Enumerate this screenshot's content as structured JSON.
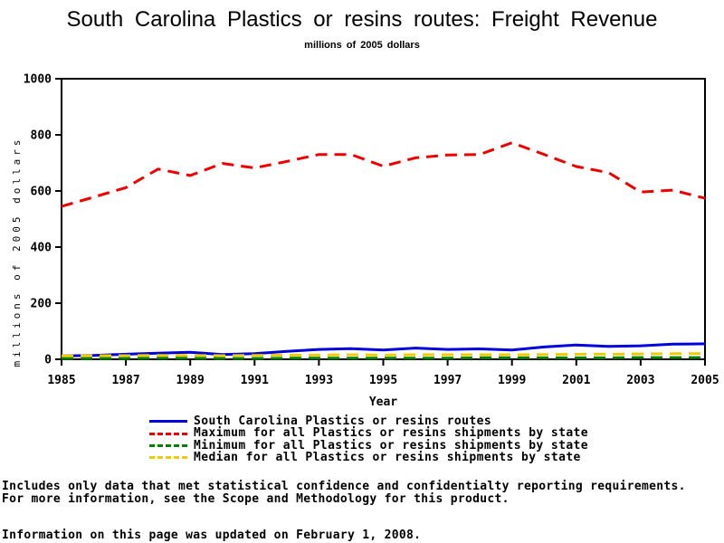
{
  "title": "South Carolina Plastics or resins routes: Freight Revenue",
  "subtitle": "millions of 2005 dollars",
  "chart_data": {
    "type": "line",
    "title": "South Carolina Plastics or resins routes: Freight Revenue",
    "subtitle": "millions of 2005 dollars",
    "xlabel": "Year",
    "ylabel": "millions of 2005 dollars",
    "ylim": [
      0,
      1000
    ],
    "yticks": [
      0,
      200,
      400,
      600,
      800,
      1000
    ],
    "xticks": [
      1985,
      1987,
      1989,
      1991,
      1993,
      1995,
      1997,
      1999,
      2001,
      2003,
      2005
    ],
    "x": [
      1985,
      1986,
      1987,
      1988,
      1989,
      1990,
      1991,
      1992,
      1993,
      1994,
      1995,
      1996,
      1997,
      1998,
      1999,
      2000,
      2001,
      2002,
      2003,
      2004,
      2005
    ],
    "legend_position": "bottom",
    "grid": false,
    "series": [
      {
        "name": "South Carolina Plastics or resins routes",
        "color": "#0000dd",
        "dash": "solid",
        "values": [
          12,
          14,
          18,
          22,
          25,
          17,
          20,
          28,
          35,
          38,
          33,
          40,
          35,
          37,
          33,
          44,
          51,
          46,
          48,
          54,
          55
        ]
      },
      {
        "name": "Maximum for all Plastics or resins shipments by state",
        "color": "#ee0000",
        "dash": "dashed",
        "values": [
          545,
          578,
          612,
          678,
          655,
          698,
          682,
          705,
          730,
          730,
          688,
          718,
          728,
          730,
          772,
          730,
          687,
          665,
          596,
          603,
          574
        ]
      },
      {
        "name": "Minimum for all Plastics or resins shipments by state",
        "color": "#008000",
        "dash": "dashed",
        "values": [
          3,
          3,
          3,
          4,
          4,
          3,
          3,
          4,
          4,
          4,
          4,
          4,
          4,
          5,
          5,
          5,
          5,
          5,
          6,
          6,
          6
        ]
      },
      {
        "name": "Median for all Plastics or resins shipments by state",
        "color": "#eecc00",
        "dash": "dashed",
        "values": [
          12,
          13,
          13,
          14,
          14,
          13,
          14,
          15,
          15,
          16,
          15,
          16,
          16,
          16,
          16,
          17,
          18,
          18,
          19,
          20,
          20
        ]
      }
    ]
  },
  "footer": {
    "line1": "Includes only data that met statistical confidence and confidentialty reporting requirements.",
    "line2": "For more information, see the Scope and Methodology for this product.",
    "line3": "Information on this page was updated on February 1, 2008."
  }
}
